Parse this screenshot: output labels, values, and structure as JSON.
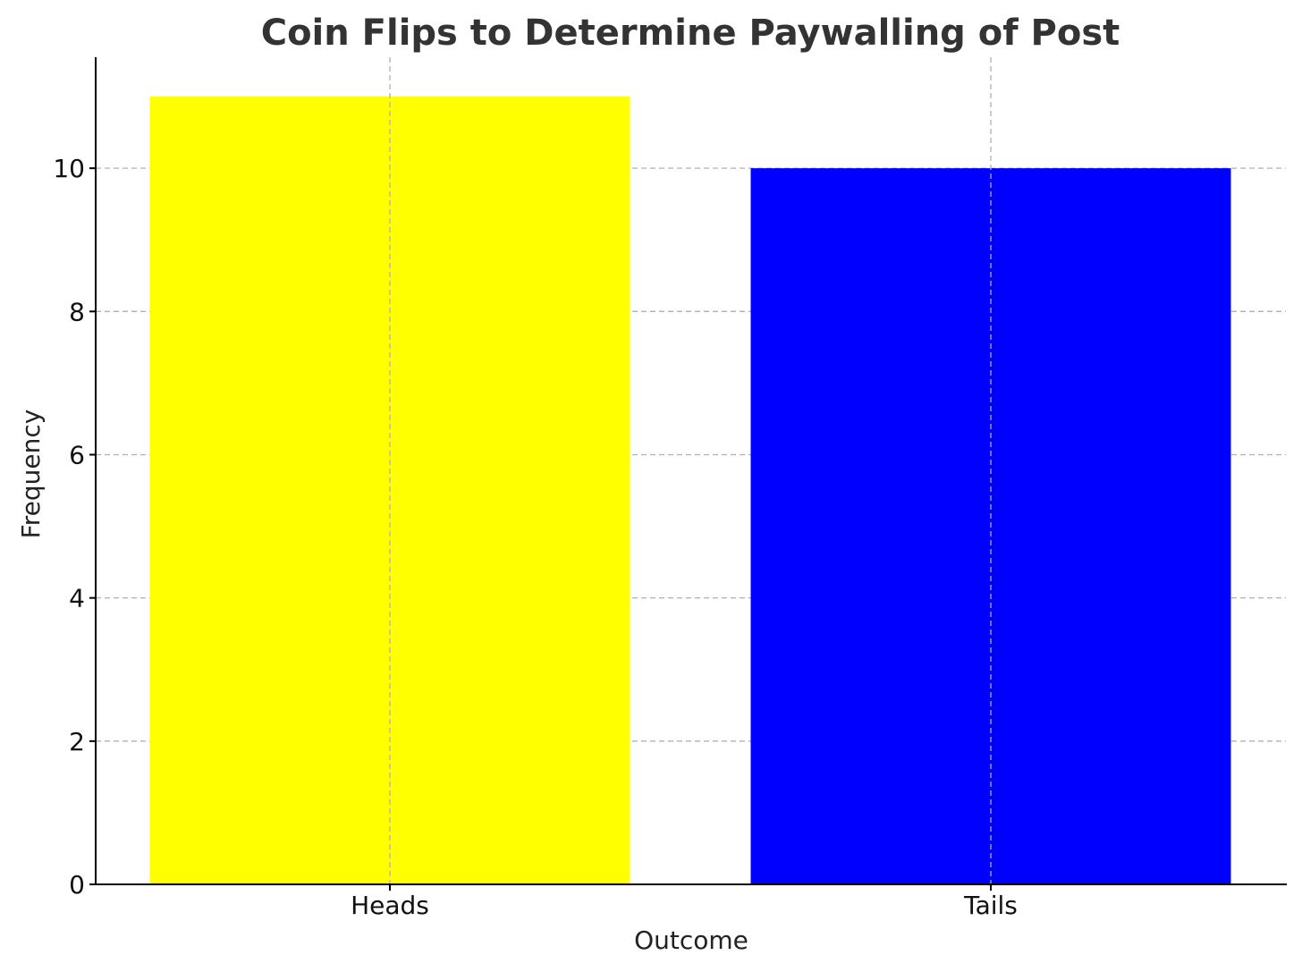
{
  "chart_data": {
    "type": "bar",
    "title": "Coin Flips to Determine Paywalling of Post",
    "xlabel": "Outcome",
    "ylabel": "Frequency",
    "categories": [
      "Heads",
      "Tails"
    ],
    "values": [
      11,
      10
    ],
    "colors": [
      "#ffff00",
      "#0000ff"
    ],
    "ylim": [
      0,
      11.55
    ],
    "yticks": [
      0,
      2,
      4,
      6,
      8,
      10
    ],
    "grid": true,
    "legend": "none"
  }
}
